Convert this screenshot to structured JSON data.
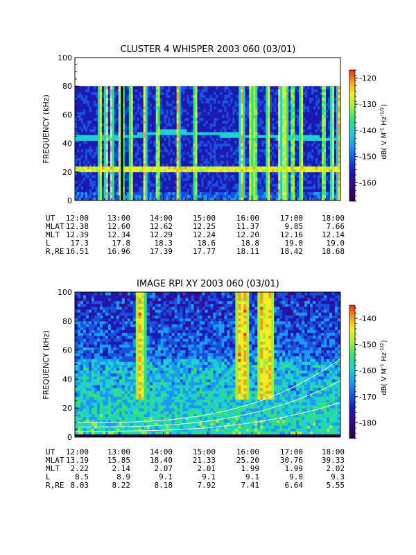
{
  "chart_data": [
    {
      "type": "heatmap",
      "title": "CLUSTER 4 WHISPER 2003 060 (03/01)",
      "ylabel": "FREQUENCY (kHz)",
      "ylim": [
        0,
        100
      ],
      "data_ylim": [
        0,
        80
      ],
      "yticks": [
        "0",
        "20",
        "40",
        "60",
        "80",
        "100"
      ],
      "colorbar": {
        "label": "dB( V M^-1 Hz^-1/2)",
        "label_main": "dB( V M",
        "label_sup1": "-1",
        "label_mid": " Hz",
        "label_sup2": "-1/2",
        "label_end": ")",
        "range": [
          -167,
          -117
        ],
        "ticks": [
          "-120",
          "-130",
          "-140",
          "-150",
          "-160"
        ]
      },
      "x_ticks": [
        "12:00",
        "13:00",
        "14:00",
        "15:00",
        "16:00",
        "17:00",
        "18:00"
      ],
      "ephemeris": [
        {
          "label": "UT",
          "values": [
            "12:00",
            "13:00",
            "14:00",
            "15:00",
            "16:00",
            "17:00",
            "18:00"
          ]
        },
        {
          "label": "MLAT",
          "values": [
            "12.38",
            "12.60",
            "12.62",
            "12.25",
            "11.37",
            "9.85",
            "7.66"
          ]
        },
        {
          "label": "MLT",
          "values": [
            "12.39",
            "12.34",
            "12.29",
            "12.24",
            "12.20",
            "12.16",
            "12.14"
          ]
        },
        {
          "label": "L",
          "values": [
            "17.3",
            "17.8",
            "18.3",
            "18.6",
            "18.8",
            "19.0",
            "19.0"
          ]
        },
        {
          "label": "R,RE",
          "values": [
            "16.51",
            "16.96",
            "17.39",
            "17.77",
            "18.11",
            "18.42",
            "18.68"
          ]
        }
      ],
      "features": {
        "band_upper_khz": [
          44,
          44,
          48,
          47,
          45,
          44,
          43
        ],
        "band_lower_khz": [
          22,
          22,
          23,
          22,
          22,
          22,
          22
        ],
        "burst_times_hr": [
          12.55,
          12.7,
          12.8,
          13.0,
          13.05,
          13.25,
          13.55,
          13.85,
          14.3,
          14.7,
          15.75,
          15.95,
          16.05,
          16.35,
          16.6,
          16.7,
          16.75,
          16.9,
          17.1,
          17.6,
          17.8,
          17.95
        ]
      }
    },
    {
      "type": "heatmap",
      "title": "IMAGE RPI XY 2003 060 (03/01)",
      "ylabel": "FREQUENCY (kHz)",
      "ylim": [
        0,
        100
      ],
      "yticks": [
        "0",
        "20",
        "40",
        "60",
        "80",
        "100"
      ],
      "colorbar": {
        "label": "dB( V M^-1 Hz^-1/2)",
        "label_main": "dB( V M",
        "label_sup1": "-1",
        "label_mid": " Hz",
        "label_sup2": "-1/2",
        "label_end": ")",
        "range": [
          -186,
          -135
        ],
        "ticks": [
          "-140",
          "-150",
          "-160",
          "-170",
          "-180"
        ]
      },
      "x_ticks": [
        "12:00",
        "13:00",
        "14:00",
        "15:00",
        "16:00",
        "17:00",
        "18:00"
      ],
      "ephemeris": [
        {
          "label": "UT",
          "values": [
            "12:00",
            "13:00",
            "14:00",
            "15:00",
            "16:00",
            "17:00",
            "18:00"
          ]
        },
        {
          "label": "MLAT",
          "values": [
            "13.19",
            "15.85",
            "18.40",
            "21.33",
            "25.20",
            "30.76",
            "39.33"
          ]
        },
        {
          "label": "MLT",
          "values": [
            "2.22",
            "2.14",
            "2.07",
            "2.01",
            "1.99",
            "1.99",
            "2.02"
          ]
        },
        {
          "label": "L",
          "values": [
            "8.5",
            "8.9",
            "9.1",
            "9.1",
            "9.1",
            "9.0",
            "9.3"
          ]
        },
        {
          "label": "R,RE",
          "values": [
            "8.03",
            "8.22",
            "8.18",
            "7.92",
            "7.41",
            "6.64",
            "5.55"
          ]
        }
      ],
      "features": {
        "strong_emission_times_hr": [
          13.45,
          15.7,
          15.8,
          16.2,
          16.35
        ],
        "plasma_lines": 3
      }
    }
  ],
  "colors": {
    "scale": [
      "#2a004a",
      "#3a0a8a",
      "#1a1ab0",
      "#1a50e0",
      "#1a9af0",
      "#20d0d0",
      "#30e080",
      "#a0f040",
      "#f0f020",
      "#f0a020",
      "#f03010"
    ]
  }
}
